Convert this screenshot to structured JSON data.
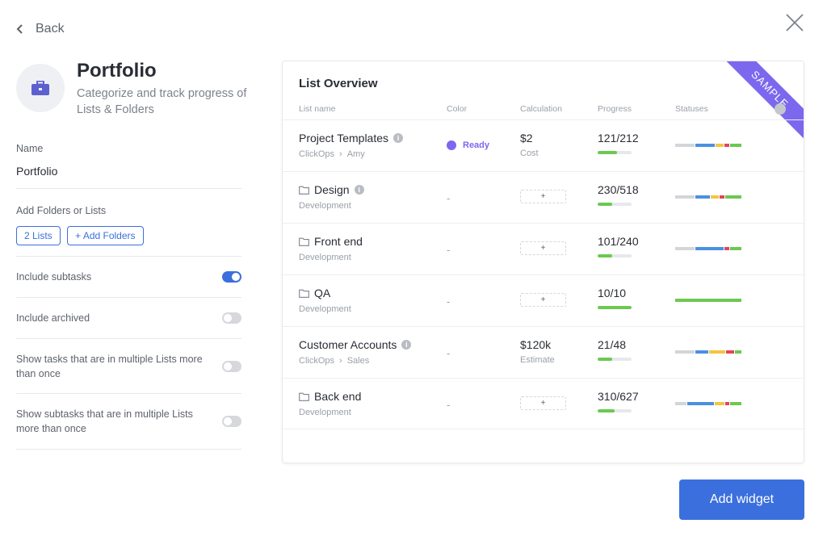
{
  "nav": {
    "back_label": "Back"
  },
  "header": {
    "title": "Portfolio",
    "subtitle": "Categorize and track progress of Lists & Folders",
    "icon": "briefcase-icon",
    "icon_color": "#5d5fcf"
  },
  "settings": {
    "name_label": "Name",
    "name_value": "Portfolio",
    "add_label": "Add Folders or Lists",
    "lists_button": "2 Lists",
    "add_folders_button": "+ Add Folders",
    "toggles": [
      {
        "label": "Include subtasks",
        "on": true
      },
      {
        "label": "Include archived",
        "on": false
      },
      {
        "label": "Show tasks that are in multiple Lists more than once",
        "on": false
      },
      {
        "label": "Show subtasks that are in multiple Lists more than once",
        "on": false
      }
    ]
  },
  "overview": {
    "title": "List Overview",
    "ribbon": "SAMPLE",
    "columns": [
      "List name",
      "Color",
      "Calculation",
      "Progress",
      "Statuses"
    ],
    "rows": [
      {
        "name": "Project Templates",
        "folder": false,
        "path": [
          "ClickOps",
          "Amy"
        ],
        "color": "Ready",
        "calc_value": "$2",
        "calc_sub": "Cost",
        "progress": "121/212",
        "progress_fraction": 0.57,
        "statuses": [
          {
            "c": "#d3d5d9",
            "w": 24
          },
          {
            "c": "#4a90e2",
            "w": 24
          },
          {
            "c": "#f4c542",
            "w": 10
          },
          {
            "c": "#e2445c",
            "w": 6
          },
          {
            "c": "#6bc950",
            "w": 14
          }
        ]
      },
      {
        "name": "Design",
        "folder": true,
        "path": [
          "Development"
        ],
        "color": "-",
        "calc_button": "+",
        "progress": "230/518",
        "progress_fraction": 0.44,
        "statuses": [
          {
            "c": "#d3d5d9",
            "w": 24
          },
          {
            "c": "#4a90e2",
            "w": 18
          },
          {
            "c": "#f4c542",
            "w": 10
          },
          {
            "c": "#e2445c",
            "w": 6
          },
          {
            "c": "#6bc950",
            "w": 20
          }
        ]
      },
      {
        "name": "Front end",
        "folder": true,
        "path": [
          "Development"
        ],
        "color": "-",
        "calc_button": "+",
        "progress": "101/240",
        "progress_fraction": 0.42,
        "statuses": [
          {
            "c": "#d3d5d9",
            "w": 24
          },
          {
            "c": "#4a90e2",
            "w": 36
          },
          {
            "c": "#e2445c",
            "w": 6
          },
          {
            "c": "#6bc950",
            "w": 14
          }
        ]
      },
      {
        "name": "QA",
        "folder": true,
        "path": [
          "Development"
        ],
        "color": "-",
        "calc_button": "+",
        "progress": "10/10",
        "progress_fraction": 1.0,
        "statuses": [
          {
            "c": "#6bc950",
            "w": 82
          }
        ]
      },
      {
        "name": "Customer Accounts",
        "folder": false,
        "path": [
          "ClickOps",
          "Sales"
        ],
        "color": "-",
        "calc_value": "$120k",
        "calc_sub": "Estimate",
        "progress": "21/48",
        "progress_fraction": 0.44,
        "statuses": [
          {
            "c": "#d3d5d9",
            "w": 24
          },
          {
            "c": "#4a90e2",
            "w": 16
          },
          {
            "c": "#f4c542",
            "w": 20
          },
          {
            "c": "#e2445c",
            "w": 10
          },
          {
            "c": "#6bc950",
            "w": 8
          }
        ]
      },
      {
        "name": "Back end",
        "folder": true,
        "path": [
          "Development"
        ],
        "color": "-",
        "calc_button": "+",
        "progress": "310/627",
        "progress_fraction": 0.49,
        "statuses": [
          {
            "c": "#d3d5d9",
            "w": 14
          },
          {
            "c": "#4a90e2",
            "w": 34
          },
          {
            "c": "#f4c542",
            "w": 12
          },
          {
            "c": "#e2445c",
            "w": 6
          },
          {
            "c": "#6bc950",
            "w": 14
          }
        ]
      }
    ]
  },
  "footer": {
    "add_widget": "Add widget"
  },
  "theme": {
    "accent": "#3b6fdd",
    "sample_ribbon": "#7b68ee",
    "progress_fill": "#6bc950"
  }
}
